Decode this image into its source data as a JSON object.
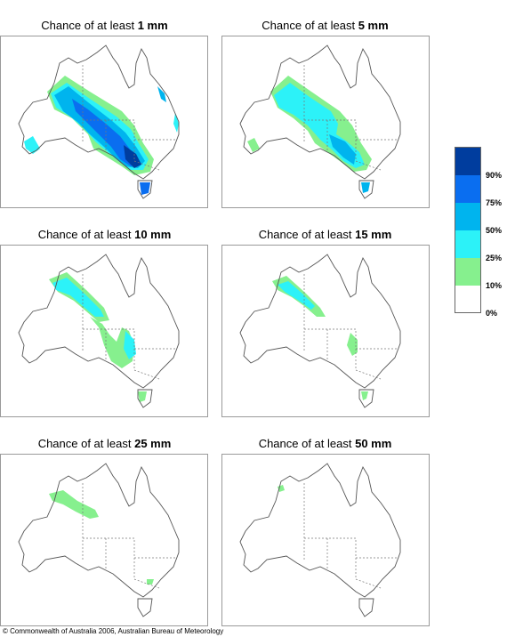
{
  "panels": [
    {
      "prefix": "Chance of at least",
      "amount": "1 mm"
    },
    {
      "prefix": "Chance of at least",
      "amount": "5 mm"
    },
    {
      "prefix": "Chance of at least",
      "amount": "10 mm"
    },
    {
      "prefix": "Chance of at least",
      "amount": "15 mm"
    },
    {
      "prefix": "Chance of at least",
      "amount": "25 mm"
    },
    {
      "prefix": "Chance of at least",
      "amount": "50 mm"
    }
  ],
  "legend": {
    "labels": [
      "90%",
      "75%",
      "50%",
      "25%",
      "10%",
      "0%"
    ],
    "colors": [
      "#003d9e",
      "#0a6ef0",
      "#00b4ee",
      "#2cf2f8",
      "#86f08e",
      "#ffffff"
    ]
  },
  "footer": {
    "copyright": "© Commonwealth of Australia 2006, Australian Bureau of Meteorology"
  }
}
